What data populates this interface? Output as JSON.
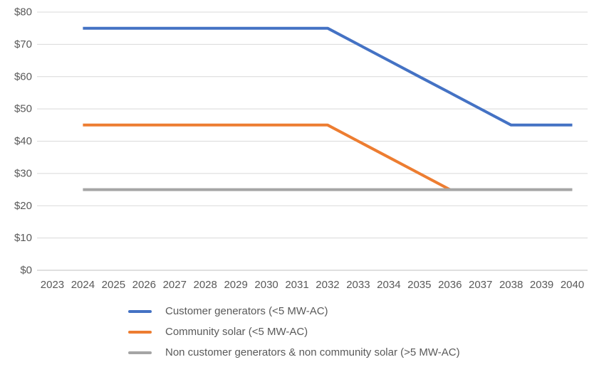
{
  "chart_data": {
    "type": "line",
    "title": "",
    "xlabel": "",
    "ylabel": "",
    "categories": [
      "2023",
      "2024",
      "2025",
      "2026",
      "2027",
      "2028",
      "2029",
      "2030",
      "2031",
      "2032",
      "2033",
      "2034",
      "2035",
      "2036",
      "2037",
      "2038",
      "2039",
      "2040"
    ],
    "series": [
      {
        "name": "Customer generators (<5 MW-AC)",
        "color": "#4472C4",
        "values": [
          null,
          75,
          75,
          75,
          75,
          75,
          75,
          75,
          75,
          75,
          70,
          65,
          60,
          55,
          50,
          45,
          45,
          45
        ]
      },
      {
        "name": "Community solar (<5 MW-AC)",
        "color": "#ED7D31",
        "values": [
          null,
          45,
          45,
          45,
          45,
          45,
          45,
          45,
          45,
          45,
          40,
          35,
          30,
          25,
          null,
          null,
          null,
          null
        ]
      },
      {
        "name": "Non customer generators & non community solar (>5 MW-AC)",
        "color": "#A5A5A5",
        "values": [
          null,
          25,
          25,
          25,
          25,
          25,
          25,
          25,
          25,
          25,
          25,
          25,
          25,
          25,
          25,
          25,
          25,
          25
        ]
      }
    ],
    "ylim": [
      0,
      80
    ],
    "ytick_step": 10,
    "ytick_labels": [
      "$0",
      "$10",
      "$20",
      "$30",
      "$40",
      "$50",
      "$60",
      "$70",
      "$80"
    ],
    "grid": true,
    "legend_position": "bottom-left"
  },
  "style_colors": {
    "gridline": "#D9D9D9",
    "axis_line": "#BFBFBF",
    "tick_label": "#595959",
    "legend_text": "#595959"
  }
}
